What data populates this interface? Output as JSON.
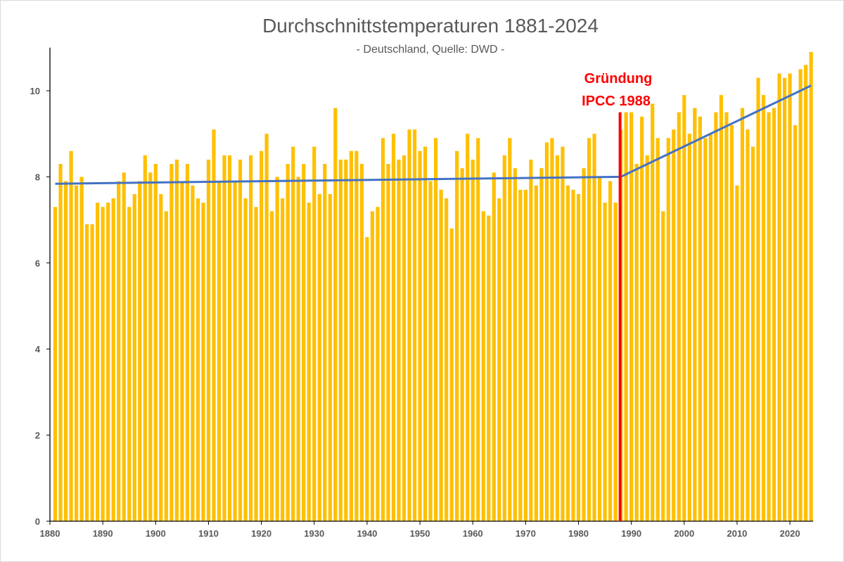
{
  "chart_data": {
    "type": "bar",
    "title": "Durchschnittstemperaturen 1881-2024",
    "subtitle": "- Deutschland, Quelle: DWD -",
    "xlabel": "",
    "ylabel": "",
    "xlim": [
      1880,
      2024
    ],
    "ylim": [
      0,
      11
    ],
    "x_ticks": [
      "1880",
      "1890",
      "1900",
      "1910",
      "1920",
      "1930",
      "1940",
      "1950",
      "1960",
      "1970",
      "1980",
      "1990",
      "2000",
      "2010",
      "2020"
    ],
    "y_ticks": [
      "0",
      "2",
      "4",
      "6",
      "8",
      "10"
    ],
    "grid": false,
    "bar_color": "#ffc000",
    "start_year": 1881,
    "values": [
      7.3,
      8.3,
      7.9,
      8.6,
      7.8,
      8.0,
      6.9,
      6.9,
      7.4,
      7.3,
      7.4,
      7.5,
      7.9,
      8.1,
      7.3,
      7.6,
      7.9,
      8.5,
      8.1,
      8.3,
      7.6,
      7.2,
      8.3,
      8.4,
      7.9,
      8.3,
      7.8,
      7.5,
      7.4,
      8.4,
      9.1,
      7.9,
      8.5,
      8.5,
      7.9,
      8.4,
      7.5,
      8.5,
      7.3,
      8.6,
      9.0,
      7.2,
      8.0,
      7.5,
      8.3,
      8.7,
      8.0,
      8.3,
      7.4,
      8.7,
      7.6,
      8.3,
      7.6,
      9.6,
      8.4,
      8.4,
      8.6,
      8.6,
      8.3,
      6.6,
      7.2,
      7.3,
      8.9,
      8.3,
      9.0,
      8.4,
      8.5,
      9.1,
      9.1,
      8.6,
      8.7,
      7.9,
      8.9,
      7.7,
      7.5,
      6.8,
      8.6,
      8.2,
      9.0,
      8.4,
      8.9,
      7.2,
      7.1,
      8.1,
      7.5,
      8.5,
      8.9,
      8.2,
      7.7,
      7.7,
      8.4,
      7.8,
      8.2,
      8.8,
      8.9,
      8.5,
      8.7,
      7.8,
      7.7,
      7.6,
      8.2,
      8.9,
      9.0,
      8.0,
      7.4,
      7.9,
      7.4,
      9.1,
      9.5,
      9.5,
      8.3,
      9.4,
      8.5,
      9.7,
      8.9,
      7.2,
      8.9,
      9.1,
      9.5,
      9.9,
      9.0,
      9.6,
      9.4,
      8.9,
      9.0,
      9.5,
      9.9,
      9.5,
      9.2,
      7.8,
      9.6,
      9.1,
      8.7,
      10.3,
      9.9,
      9.5,
      9.6,
      10.4,
      10.3,
      10.4,
      9.2,
      10.5,
      10.6,
      10.9
    ],
    "trend_lines": [
      {
        "color": "#4472c4",
        "from": [
          1881,
          7.84
        ],
        "to": [
          1988,
          8.0
        ]
      },
      {
        "color": "#4472c4",
        "from": [
          1988,
          8.0
        ],
        "to": [
          2024,
          10.12
        ]
      }
    ],
    "marker_line": {
      "color": "#ff0000",
      "year": 1988,
      "top": 9.5
    },
    "annotation": {
      "line1": "Gründung",
      "line2": "IPCC 1988",
      "color": "#ff0000"
    }
  }
}
